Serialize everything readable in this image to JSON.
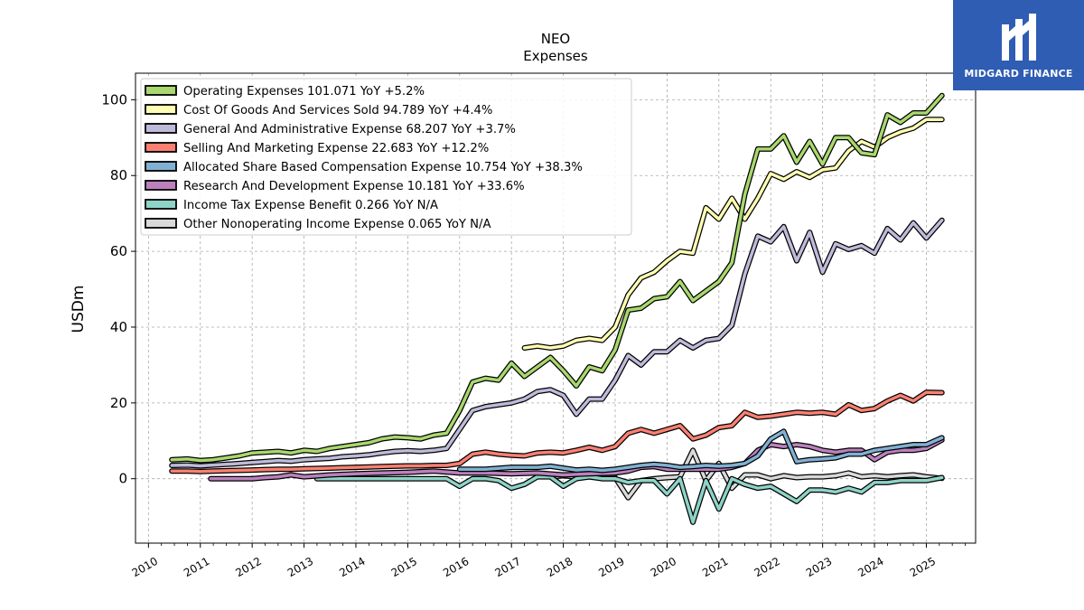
{
  "brand": {
    "name": "MIDGARD FINANCE",
    "logo_icon": "mf-logo-icon",
    "color": "#2e5db3"
  },
  "chart_data": {
    "type": "line",
    "title": "NEO",
    "subtitle": "Expenses",
    "xlabel": "",
    "ylabel": "USDm",
    "xlim": [
      2009.75,
      2025.95
    ],
    "ylim": [
      -17,
      107
    ],
    "yticks": [
      0,
      20,
      40,
      60,
      80,
      100
    ],
    "xticks": [
      "2010",
      "2011",
      "2012",
      "2013",
      "2014",
      "2015",
      "2016",
      "2017",
      "2018",
      "2019",
      "2020",
      "2021",
      "2022",
      "2023",
      "2024",
      "2025"
    ],
    "grid": true,
    "legend_position": "top-left",
    "series": [
      {
        "name": "Operating Expenses",
        "legend": "Operating Expenses  101.071 YoY +5.2%",
        "color": "#a8d86e",
        "x": [
          2010.45,
          2010.75,
          2011.0,
          2011.25,
          2011.5,
          2011.75,
          2012.0,
          2012.25,
          2012.5,
          2012.75,
          2013.0,
          2013.25,
          2013.5,
          2013.75,
          2014.0,
          2014.25,
          2014.5,
          2014.75,
          2015.0,
          2015.25,
          2015.5,
          2015.75,
          2016.0,
          2016.25,
          2016.5,
          2016.75,
          2017.0,
          2017.25,
          2017.5,
          2017.75,
          2018.0,
          2018.25,
          2018.5,
          2018.75,
          2019.0,
          2019.25,
          2019.5,
          2019.75,
          2020.0,
          2020.25,
          2020.5,
          2020.75,
          2021.0,
          2021.25,
          2021.5,
          2021.75,
          2022.0,
          2022.25,
          2022.5,
          2022.75,
          2023.0,
          2023.25,
          2023.5,
          2023.75,
          2024.0,
          2024.25,
          2024.5,
          2024.75,
          2025.0,
          2025.3
        ],
        "values": [
          5,
          5.2,
          4.8,
          5,
          5.5,
          6,
          6.8,
          7,
          7.2,
          6.8,
          7.5,
          7.2,
          8,
          8.5,
          9,
          9.5,
          10.5,
          11,
          10.8,
          10.5,
          11.5,
          12,
          18,
          25.5,
          26.5,
          26,
          30.5,
          27,
          29.5,
          32,
          28.5,
          24.5,
          29.5,
          28.5,
          34,
          44.5,
          45,
          47.5,
          48,
          52,
          47,
          49.5,
          52,
          57,
          75,
          87,
          87,
          90.5,
          83.5,
          89,
          83,
          90,
          90,
          86,
          85.5,
          96,
          94,
          96.5,
          96.5,
          101.1
        ]
      },
      {
        "name": "Cost Of Goods And Services Sold",
        "legend": "Cost Of Goods And Services Sold  94.789 YoY +4.4%",
        "color": "#ffffb3",
        "x": [
          2017.25,
          2017.5,
          2017.75,
          2018.0,
          2018.25,
          2018.5,
          2018.75,
          2019.0,
          2019.25,
          2019.5,
          2019.75,
          2020.0,
          2020.25,
          2020.5,
          2020.75,
          2021.0,
          2021.25,
          2021.5,
          2021.75,
          2022.0,
          2022.25,
          2022.5,
          2022.75,
          2023.0,
          2023.25,
          2023.5,
          2023.75,
          2024.0,
          2024.25,
          2024.5,
          2024.75,
          2025.0,
          2025.3
        ],
        "values": [
          34.5,
          35,
          34.5,
          35,
          36.5,
          37,
          36.5,
          40,
          48.5,
          53,
          54.5,
          57.5,
          60,
          59.5,
          71.5,
          68.5,
          74,
          68.5,
          74,
          80.5,
          79,
          81,
          79.5,
          81.5,
          82,
          86.5,
          89,
          87.5,
          90,
          91.5,
          92.5,
          94.8,
          94.8
        ]
      },
      {
        "name": "General And Administrative Expense",
        "legend": "General And Administrative Expense  68.207 YoY +3.7%",
        "color": "#bebada",
        "x": [
          2010.45,
          2010.75,
          2011.0,
          2011.25,
          2011.5,
          2011.75,
          2012.0,
          2012.25,
          2012.5,
          2012.75,
          2013.0,
          2013.25,
          2013.5,
          2013.75,
          2014.0,
          2014.25,
          2014.5,
          2014.75,
          2015.0,
          2015.25,
          2015.5,
          2015.75,
          2016.0,
          2016.25,
          2016.5,
          2016.75,
          2017.0,
          2017.25,
          2017.5,
          2017.75,
          2018.0,
          2018.25,
          2018.5,
          2018.75,
          2019.0,
          2019.25,
          2019.5,
          2019.75,
          2020.0,
          2020.25,
          2020.5,
          2020.75,
          2021.0,
          2021.25,
          2021.5,
          2021.75,
          2022.0,
          2022.25,
          2022.5,
          2022.75,
          2023.0,
          2023.25,
          2023.5,
          2023.75,
          2024.0,
          2024.25,
          2024.5,
          2024.75,
          2025.0,
          2025.3
        ],
        "values": [
          3.5,
          3.6,
          3.4,
          3.6,
          3.8,
          4,
          4.3,
          4.5,
          4.8,
          4.6,
          5,
          5.2,
          5.4,
          5.8,
          6,
          6.3,
          6.8,
          7.2,
          7.4,
          7.2,
          7.5,
          8,
          13,
          18,
          19,
          19.5,
          20,
          21,
          23,
          23.5,
          22,
          17,
          21,
          21,
          26,
          32.5,
          30,
          33.5,
          33.5,
          36.5,
          34.5,
          36.5,
          37,
          40.5,
          54,
          64,
          62.5,
          66.5,
          57.5,
          65,
          54.5,
          62,
          60.5,
          61.5,
          59.5,
          66,
          63,
          67.5,
          63.5,
          68.2
        ]
      },
      {
        "name": "Selling And Marketing Expense",
        "legend": "Selling And Marketing Expense  22.683 YoY +12.2%",
        "color": "#fb8072",
        "x": [
          2010.45,
          2010.75,
          2011.0,
          2011.25,
          2011.5,
          2011.75,
          2012.0,
          2012.25,
          2012.5,
          2012.75,
          2013.0,
          2013.25,
          2013.5,
          2013.75,
          2014.0,
          2014.25,
          2014.5,
          2014.75,
          2015.0,
          2015.25,
          2015.5,
          2015.75,
          2016.0,
          2016.25,
          2016.5,
          2016.75,
          2017.0,
          2017.25,
          2017.5,
          2017.75,
          2018.0,
          2018.25,
          2018.5,
          2018.75,
          2019.0,
          2019.25,
          2019.5,
          2019.75,
          2020.0,
          2020.25,
          2020.5,
          2020.75,
          2021.0,
          2021.25,
          2021.5,
          2021.75,
          2022.0,
          2022.25,
          2022.5,
          2022.75,
          2023.0,
          2023.25,
          2023.5,
          2023.75,
          2024.0,
          2024.25,
          2024.5,
          2024.75,
          2025.0,
          2025.3
        ],
        "values": [
          2,
          2,
          1.9,
          2,
          2.1,
          2.2,
          2.3,
          2.4,
          2.5,
          2.5,
          2.6,
          2.7,
          2.8,
          2.9,
          3,
          3.1,
          3.2,
          3.3,
          3.4,
          3.4,
          3.5,
          3.5,
          4,
          6.5,
          7,
          6.5,
          6.2,
          6,
          6.8,
          7,
          6.8,
          7.5,
          8.3,
          7.5,
          8.5,
          12,
          13,
          12,
          13,
          14,
          10.5,
          11.5,
          13.5,
          14,
          17.5,
          16.2,
          16.5,
          17,
          17.5,
          17.3,
          17.5,
          17,
          19.5,
          18,
          18.5,
          20.5,
          22,
          20.5,
          22.8,
          22.7
        ]
      },
      {
        "name": "Allocated Share Based Compensation Expense",
        "legend": "Allocated Share Based Compensation Expense  10.754 YoY +38.3%",
        "color": "#80b1d3",
        "x": [
          2016.0,
          2016.5,
          2017.0,
          2017.5,
          2017.75,
          2018.0,
          2018.25,
          2018.5,
          2018.75,
          2019.0,
          2019.25,
          2019.5,
          2019.75,
          2020.0,
          2020.25,
          2020.5,
          2020.75,
          2021.0,
          2021.25,
          2021.5,
          2021.75,
          2022.0,
          2022.25,
          2022.5,
          2022.75,
          2023.0,
          2023.25,
          2023.5,
          2023.75,
          2024.0,
          2024.25,
          2024.5,
          2024.75,
          2025.0,
          2025.3
        ],
        "values": [
          2.5,
          2.5,
          3,
          3,
          3.3,
          2.8,
          2.3,
          2.5,
          2.2,
          2.5,
          3,
          3.5,
          3.8,
          3.5,
          3,
          3.2,
          3.5,
          3.3,
          3.5,
          4,
          6,
          10.5,
          12.5,
          4.5,
          5,
          5.2,
          5.5,
          6.5,
          6.5,
          7.5,
          8,
          8.5,
          9,
          9,
          10.8
        ]
      },
      {
        "name": "Research And Development Expense",
        "legend": "Research And Development Expense  10.181 YoY +33.6%",
        "color": "#bc80bd",
        "x": [
          2011.2,
          2011.5,
          2011.75,
          2012.0,
          2012.25,
          2012.5,
          2012.75,
          2013.0,
          2013.5,
          2014.0,
          2014.5,
          2015.0,
          2015.5,
          2016.0,
          2016.5,
          2017.0,
          2017.5,
          2018.0,
          2018.5,
          2019.0,
          2019.25,
          2019.5,
          2019.75,
          2020.0,
          2020.25,
          2020.5,
          2020.75,
          2021.0,
          2021.25,
          2021.5,
          2021.75,
          2022.0,
          2022.25,
          2022.5,
          2022.75,
          2023.0,
          2023.25,
          2023.5,
          2023.75,
          2024.0,
          2024.25,
          2024.5,
          2024.75,
          2025.0,
          2025.3
        ],
        "values": [
          0,
          0,
          0,
          0,
          0.3,
          0.5,
          1,
          0.5,
          1,
          1.3,
          1.5,
          1.7,
          2,
          1.5,
          1.5,
          1.3,
          1.5,
          1,
          1.3,
          1.5,
          2,
          3,
          3.2,
          2.5,
          2.5,
          2.5,
          2.5,
          2.5,
          3,
          4,
          7.5,
          9,
          8.5,
          9,
          8.5,
          7.5,
          7,
          7.5,
          7.5,
          5,
          7,
          7.5,
          7.5,
          8,
          10.2
        ]
      },
      {
        "name": "Income Tax Expense Benefit",
        "legend": "Income Tax Expense Benefit  0.266 YoY N/A",
        "color": "#8dd3c7",
        "x": [
          2013.25,
          2013.5,
          2014.0,
          2014.5,
          2015.0,
          2015.5,
          2015.75,
          2016.0,
          2016.25,
          2016.5,
          2016.75,
          2017.0,
          2017.25,
          2017.5,
          2017.75,
          2018.0,
          2018.25,
          2018.5,
          2018.75,
          2019.0,
          2019.25,
          2019.5,
          2019.75,
          2020.0,
          2020.25,
          2020.5,
          2020.75,
          2021.0,
          2021.25,
          2021.5,
          2021.75,
          2022.0,
          2022.25,
          2022.5,
          2022.75,
          2023.0,
          2023.25,
          2023.5,
          2023.75,
          2024.0,
          2024.25,
          2024.5,
          2024.75,
          2025.0,
          2025.3
        ],
        "values": [
          0,
          0,
          0,
          0,
          0,
          0,
          0,
          -2,
          0,
          0,
          -0.5,
          -2.5,
          -1.5,
          0.5,
          0.5,
          -2,
          0,
          0.5,
          0,
          0,
          -1,
          -0.5,
          -0.5,
          -4,
          0,
          -11.5,
          -0.5,
          -8,
          0,
          -1.5,
          -2.5,
          -2,
          -4,
          -6,
          -3,
          -3,
          -3.5,
          -2.5,
          -3.5,
          -1,
          -1,
          -0.5,
          -0.5,
          -0.5,
          0.3
        ]
      },
      {
        "name": "Other Nonoperating Income Expense",
        "legend": "Other Nonoperating Income Expense  0.065 YoY N/A",
        "color": "#d9d9d9",
        "x": [
          2017.75,
          2018.0,
          2018.25,
          2018.5,
          2018.75,
          2019.0,
          2019.25,
          2019.5,
          2019.75,
          2020.0,
          2020.25,
          2020.5,
          2020.75,
          2021.0,
          2021.25,
          2021.5,
          2021.75,
          2022.0,
          2022.25,
          2022.5,
          2022.75,
          2023.0,
          2023.25,
          2023.5,
          2023.75,
          2024.0,
          2024.25,
          2024.5,
          2024.75,
          2025.0,
          2025.3
        ],
        "values": [
          0.5,
          0.8,
          0.5,
          0.5,
          0.3,
          0.3,
          -5,
          -0.5,
          0,
          0.3,
          0.5,
          7.5,
          -0.5,
          4,
          -2.5,
          1,
          1,
          0,
          0.8,
          0.3,
          0.5,
          0.5,
          0.8,
          1.5,
          0.5,
          0.8,
          0.5,
          0.8,
          1,
          0.5,
          0.1
        ]
      }
    ]
  }
}
